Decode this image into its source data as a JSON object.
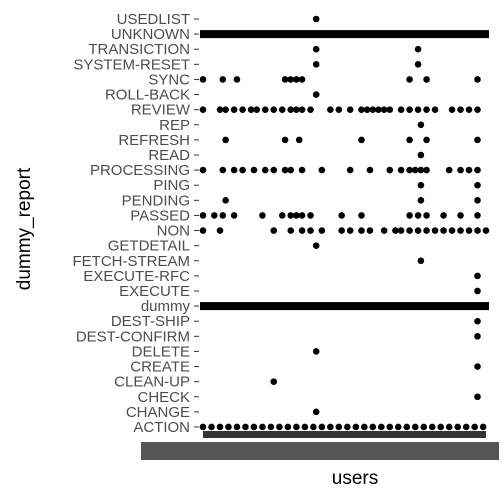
{
  "chart_data": {
    "type": "scatter",
    "title": "",
    "xlabel": "users",
    "ylabel": "dummy_report",
    "xlim": [
      0,
      100
    ],
    "grid": false,
    "legend": "none",
    "categories": [
      "USEDLIST",
      "UNKNOWN",
      "TRANSICTION",
      "SYSTEM-RESET",
      "SYNC",
      "ROLL-BACK",
      "REVIEW",
      "REP",
      "REFRESH",
      "READ",
      "PROCESSING",
      "PING",
      "PENDING",
      "PASSED",
      "NON",
      "GETDETAIL",
      "FETCH-STREAM",
      "EXECUTE-RFC",
      "EXECUTE",
      "dummy",
      "DEST-SHIP",
      "DEST-CONFIRM",
      "DELETE",
      "CREATE",
      "CLEAN-UP",
      "CHECK",
      "CHANGE",
      "ACTION"
    ],
    "dense_rows": [
      "UNKNOWN",
      "dummy"
    ],
    "points": {
      "USEDLIST": [
        40
      ],
      "TRANSICTION": [
        40,
        76
      ],
      "SYSTEM-RESET": [
        40,
        76
      ],
      "SYNC": [
        0,
        7,
        12,
        29,
        31,
        33,
        35,
        73,
        79,
        97
      ],
      "ROLL-BACK": [
        40
      ],
      "REVIEW": [
        0,
        6,
        8,
        11,
        14,
        17,
        19,
        22,
        25,
        28,
        31,
        33,
        35,
        38,
        45,
        48,
        52,
        56,
        58,
        60,
        62,
        64,
        66,
        70,
        73,
        76,
        79,
        82,
        88,
        91,
        94,
        97
      ],
      "REP": [
        77
      ],
      "REFRESH": [
        8,
        29,
        34,
        56,
        73,
        79,
        97
      ],
      "READ": [
        77
      ],
      "PROCESSING": [
        0,
        7,
        11,
        14,
        18,
        22,
        25,
        29,
        31,
        35,
        42,
        52,
        59,
        66,
        70,
        73,
        75,
        77,
        79,
        87,
        91,
        94,
        97
      ],
      "PING": [
        77,
        97
      ],
      "PENDING": [
        8,
        77,
        97
      ],
      "PASSED": [
        0,
        4,
        7,
        11,
        21,
        28,
        31,
        33,
        35,
        38,
        49,
        56,
        73,
        76,
        79,
        85,
        91,
        97
      ],
      "NON": [
        0,
        6,
        25,
        31,
        35,
        38,
        42,
        49,
        52,
        56,
        59,
        64,
        68,
        70,
        73,
        76,
        79,
        82,
        85,
        88,
        91,
        94,
        97,
        100
      ],
      "GETDETAIL": [
        40
      ],
      "FETCH-STREAM": [
        77
      ],
      "EXECUTE-RFC": [
        97
      ],
      "EXECUTE": [
        97
      ],
      "DEST-SHIP": [
        97
      ],
      "DEST-CONFIRM": [
        97
      ],
      "DELETE": [
        40
      ],
      "CREATE": [
        97
      ],
      "CLEAN-UP": [
        25
      ],
      "CHECK": [
        97
      ],
      "CHANGE": [
        40
      ],
      "ACTION": [
        0,
        3,
        6,
        9,
        12,
        15,
        18,
        21,
        24,
        27,
        30,
        33,
        36,
        39,
        42,
        45,
        48,
        51,
        54,
        57,
        60,
        63,
        66,
        69,
        72,
        75,
        78,
        81,
        84,
        87,
        90,
        93,
        96,
        99
      ]
    }
  }
}
